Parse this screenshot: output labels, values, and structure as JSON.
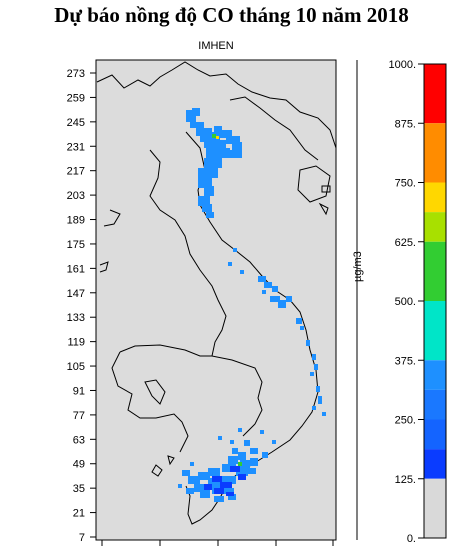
{
  "title": "Dự báo nồng độ CO tháng 10 năm 2018",
  "subtitle": "IMHEN",
  "y_axis": {
    "ticks": [
      "273",
      "259",
      "245",
      "231",
      "217",
      "203",
      "189",
      "175",
      "161",
      "147",
      "133",
      "119",
      "105",
      "91",
      "77",
      "63",
      "49",
      "35",
      "21",
      "7"
    ]
  },
  "colorbar": {
    "unit": "µg/m3",
    "labels": [
      "1000.",
      "875.",
      "750.",
      "625.",
      "500.",
      "375.",
      "250.",
      "125.",
      "0."
    ],
    "colors": [
      "#ff0000",
      "#ff8c00",
      "#ffd700",
      "#c8e600",
      "#32cd32",
      "#00e5c8",
      "#1e90ff",
      "#1464ff",
      "#0a3cff",
      "#d9d9d9"
    ]
  },
  "map": {
    "background": "#dcdcdc",
    "high_concentration_color": "#1e90ff",
    "dense_color": "#0a3cff",
    "hotspot_color": "#32cd32"
  }
}
